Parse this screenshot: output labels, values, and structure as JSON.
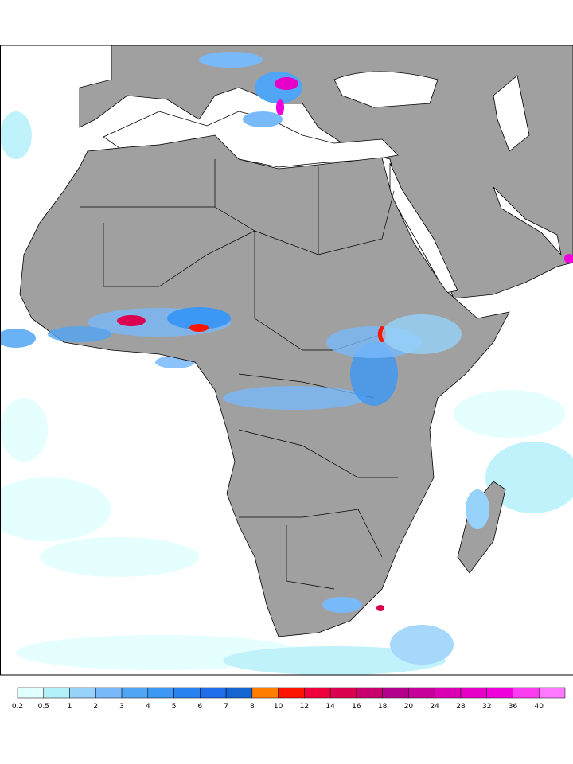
{
  "legend": {
    "ticks": [
      0.2,
      0.5,
      1,
      2,
      3,
      4,
      5,
      6,
      7,
      8,
      10,
      12,
      14,
      16,
      18,
      20,
      24,
      28,
      32,
      36,
      40
    ],
    "colors": [
      "#e1ffff",
      "#b4f0fa",
      "#96d2fa",
      "#78b9fa",
      "#50a5f5",
      "#3c97f5",
      "#2883f0",
      "#1e6eeb",
      "#1464d2",
      "#ff7d00",
      "#ff1400",
      "#f0003c",
      "#dc0050",
      "#c8006e",
      "#b4008c",
      "#c8009b",
      "#dc00b4",
      "#e600c8",
      "#f000dc",
      "#fa3cf0",
      "#ff78ff"
    ]
  }
}
